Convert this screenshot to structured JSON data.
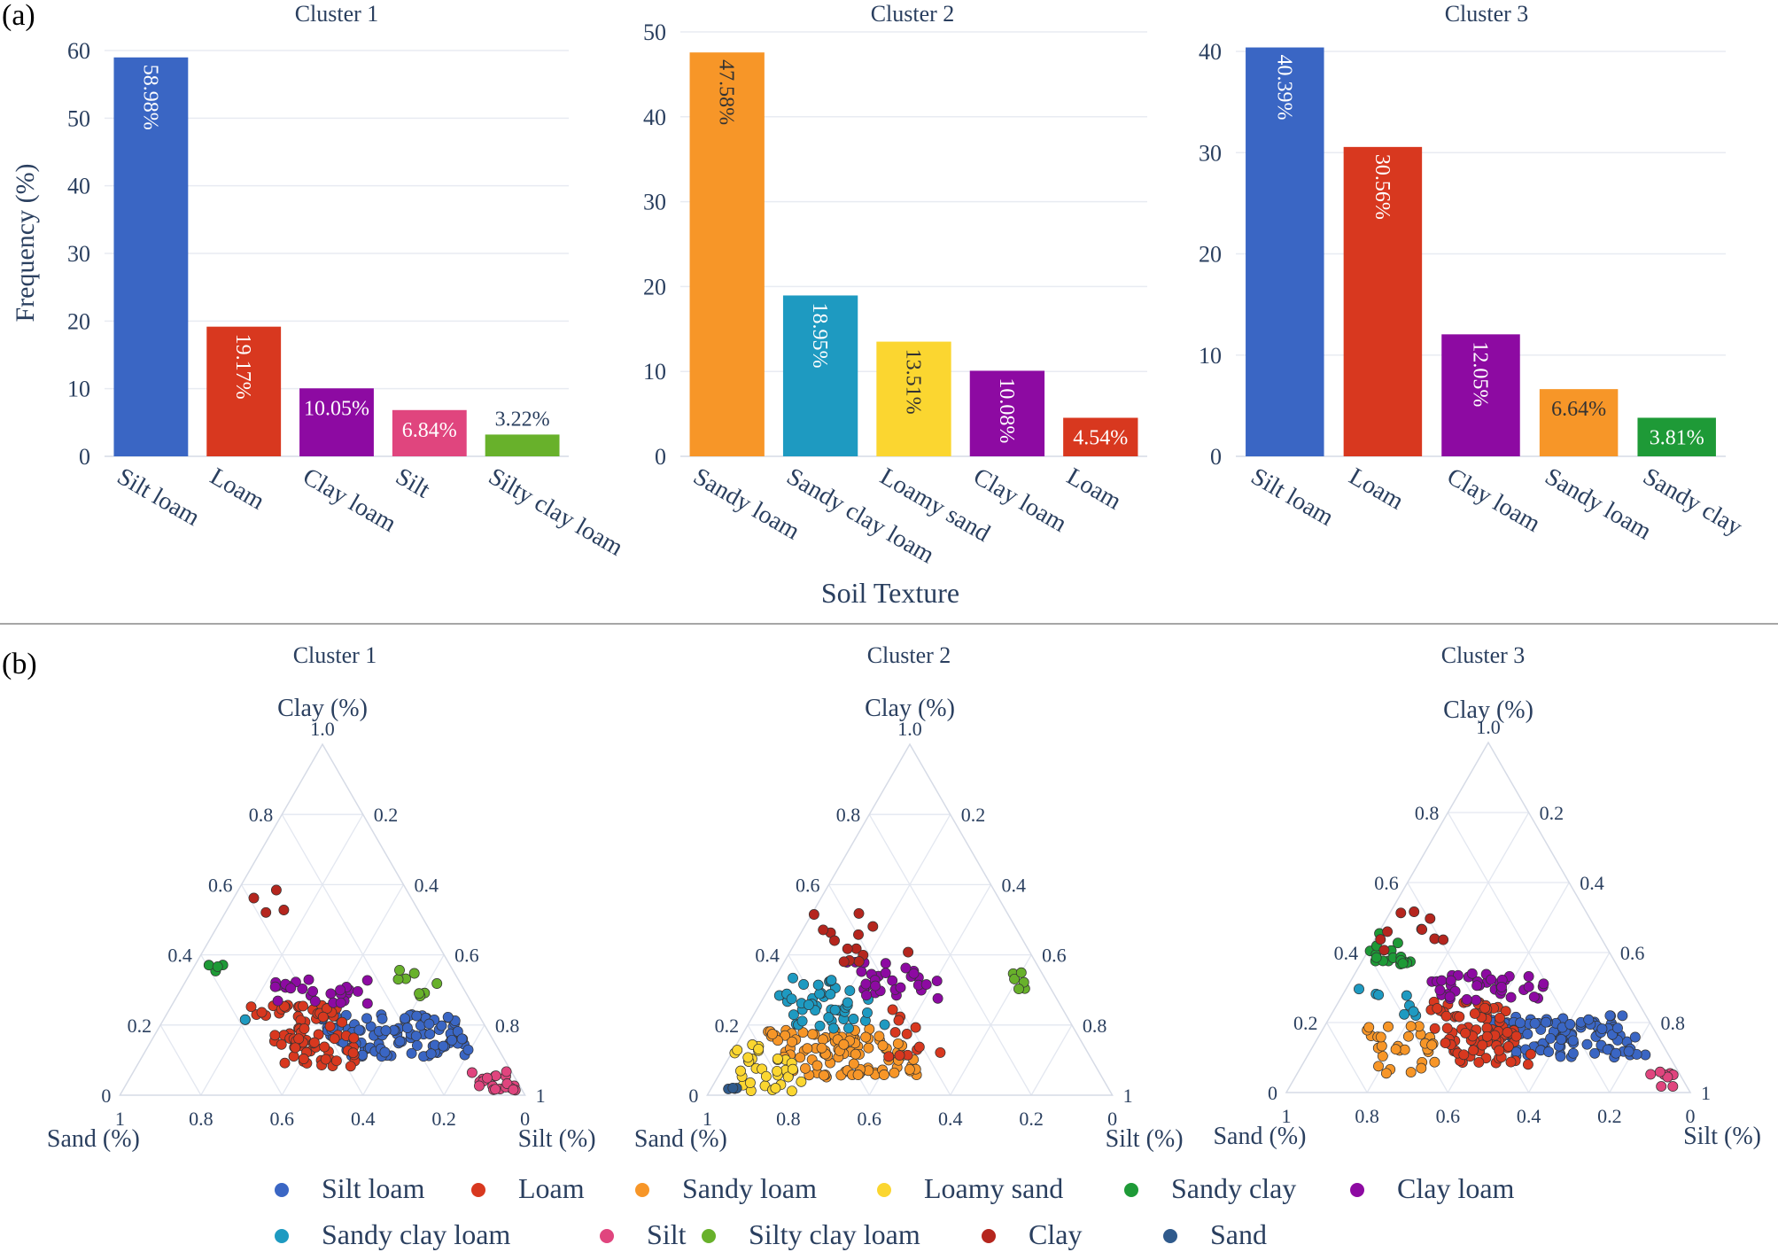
{
  "panel_a_label": "(a)",
  "panel_b_label": "(b)",
  "colors": {
    "Silt loam": "#3a66c4",
    "Loam": "#d8381f",
    "Sandy loam": "#f79628",
    "Loamy sand": "#fbd630",
    "Sandy clay": "#1e9a37",
    "Clay loam": "#8d0aa2",
    "Sandy clay loam": "#1e9ac1",
    "Silt": "#e0457e",
    "Silty clay loam": "#68b12b",
    "Clay": "#b5261e",
    "Sand": "#2f5a8c"
  },
  "legend_items": [
    "Silt loam",
    "Loam",
    "Sandy loam",
    "Loamy sand",
    "Sandy clay",
    "Clay loam",
    "Sandy clay loam",
    "Silt",
    "Silty clay loam",
    "Clay",
    "Sand"
  ],
  "chart_data": [
    {
      "type": "bar",
      "title": "Cluster 1",
      "xlabel": "Soil Texture",
      "ylabel": "Frequency (%)",
      "ylim": [
        0,
        60
      ],
      "yticks": [
        0,
        10,
        20,
        30,
        40,
        50,
        60
      ],
      "categories": [
        "Silt loam",
        "Loam",
        "Clay loam",
        "Silt",
        "Silty clay loam"
      ],
      "values": [
        58.98,
        19.17,
        10.05,
        6.84,
        3.22
      ],
      "labels": [
        "58.98%",
        "19.17%",
        "10.05%",
        "6.84%",
        "3.22%"
      ]
    },
    {
      "type": "bar",
      "title": "Cluster 2",
      "xlabel": "Soil Texture",
      "ylabel": "Frequency (%)",
      "ylim": [
        0,
        50
      ],
      "yticks": [
        0,
        10,
        20,
        30,
        40,
        50
      ],
      "categories": [
        "Sandy loam",
        "Sandy clay loam",
        "Loamy sand",
        "Clay loam",
        "Loam"
      ],
      "values": [
        47.58,
        18.95,
        13.51,
        10.08,
        4.54
      ],
      "labels": [
        "47.58%",
        "18.95%",
        "13.51%",
        "10.08%",
        "4.54%"
      ]
    },
    {
      "type": "bar",
      "title": "Cluster 3",
      "xlabel": "Soil Texture",
      "ylabel": "Frequency (%)",
      "ylim": [
        0,
        40
      ],
      "yticks": [
        0,
        10,
        20,
        30,
        40
      ],
      "categories": [
        "Silt loam",
        "Loam",
        "Clay loam",
        "Sandy loam",
        "Sandy clay"
      ],
      "values": [
        40.39,
        30.56,
        12.05,
        6.64,
        3.81
      ],
      "labels": [
        "40.39%",
        "30.56%",
        "12.05%",
        "6.64%",
        "3.81%"
      ]
    },
    {
      "type": "scatter",
      "subtype": "ternary",
      "title": "Cluster 1",
      "axes": {
        "a": "Clay (%)",
        "b": "Sand (%)",
        "c": "Silt (%)"
      },
      "ticks": [
        "0",
        "0.2",
        "0.4",
        "0.6",
        "0.8",
        "1"
      ],
      "apex_label": "1.0",
      "clusters": [
        {
          "class": "Silt loam",
          "clay": [
            0.11,
            0.23
          ],
          "sand": [
            0.05,
            0.4
          ],
          "n": 110
        },
        {
          "class": "Loam",
          "clay": [
            0.08,
            0.26
          ],
          "sand": [
            0.34,
            0.55
          ],
          "n": 80
        },
        {
          "class": "Clay loam",
          "clay": [
            0.26,
            0.33
          ],
          "sand": [
            0.22,
            0.48
          ],
          "n": 26
        },
        {
          "class": "Silt",
          "clay": [
            0.01,
            0.07
          ],
          "sand": [
            0.01,
            0.1
          ],
          "n": 20
        },
        {
          "class": "Silty clay loam",
          "clay": [
            0.28,
            0.36
          ],
          "sand": [
            0.05,
            0.18
          ],
          "n": 8
        },
        {
          "class": "Sandy clay",
          "clay": [
            0.35,
            0.38
          ],
          "sand": [
            0.56,
            0.6
          ],
          "n": 4
        },
        {
          "class": "Clay",
          "clay": [
            0.41,
            0.62
          ],
          "sand": [
            0.32,
            0.58
          ],
          "n": 4
        },
        {
          "class": "Sandy clay loam",
          "clay": [
            0.19,
            0.22
          ],
          "sand": [
            0.58,
            0.62
          ],
          "n": 2
        }
      ]
    },
    {
      "type": "scatter",
      "subtype": "ternary",
      "title": "Cluster 2",
      "axes": {
        "a": "Clay (%)",
        "b": "Sand (%)",
        "c": "Silt (%)"
      },
      "ticks": [
        "0",
        "0.2",
        "0.4",
        "0.6",
        "0.8",
        "1"
      ],
      "apex_label": "1.0",
      "clusters": [
        {
          "class": "Sandy loam",
          "clay": [
            0.05,
            0.19
          ],
          "sand": [
            0.44,
            0.76
          ],
          "n": 100
        },
        {
          "class": "Sandy clay loam",
          "clay": [
            0.19,
            0.34
          ],
          "sand": [
            0.46,
            0.68
          ],
          "n": 45
        },
        {
          "class": "Loamy sand",
          "clay": [
            0.01,
            0.15
          ],
          "sand": [
            0.74,
            0.9
          ],
          "n": 35
        },
        {
          "class": "Clay loam",
          "clay": [
            0.27,
            0.38
          ],
          "sand": [
            0.26,
            0.48
          ],
          "n": 30
        },
        {
          "class": "Loam",
          "clay": [
            0.1,
            0.26
          ],
          "sand": [
            0.36,
            0.5
          ],
          "n": 12
        },
        {
          "class": "Clay",
          "clay": [
            0.38,
            0.52
          ],
          "sand": [
            0.3,
            0.48
          ],
          "n": 14
        },
        {
          "class": "Silty clay loam",
          "clay": [
            0.3,
            0.36
          ],
          "sand": [
            0.02,
            0.08
          ],
          "n": 6
        },
        {
          "class": "Sand",
          "clay": [
            0.01,
            0.03
          ],
          "sand": [
            0.9,
            0.94
          ],
          "n": 4
        }
      ]
    },
    {
      "type": "scatter",
      "subtype": "ternary",
      "title": "Cluster 3",
      "axes": {
        "a": "Clay (%)",
        "b": "Sand (%)",
        "c": "Silt (%)"
      },
      "ticks": [
        "0",
        "0.2",
        "0.4",
        "0.6",
        "0.8",
        "1"
      ],
      "apex_label": "1.0",
      "clusters": [
        {
          "class": "Silt loam",
          "clay": [
            0.1,
            0.22
          ],
          "sand": [
            0.05,
            0.4
          ],
          "n": 110
        },
        {
          "class": "Loam",
          "clay": [
            0.08,
            0.26
          ],
          "sand": [
            0.34,
            0.55
          ],
          "n": 90
        },
        {
          "class": "Clay loam",
          "clay": [
            0.26,
            0.34
          ],
          "sand": [
            0.2,
            0.5
          ],
          "n": 40
        },
        {
          "class": "Sandy loam",
          "clay": [
            0.05,
            0.19
          ],
          "sand": [
            0.56,
            0.74
          ],
          "n": 30
        },
        {
          "class": "Sandy clay",
          "clay": [
            0.36,
            0.52
          ],
          "sand": [
            0.5,
            0.64
          ],
          "n": 18
        },
        {
          "class": "Clay",
          "clay": [
            0.4,
            0.52
          ],
          "sand": [
            0.34,
            0.56
          ],
          "n": 10
        },
        {
          "class": "Sandy clay loam",
          "clay": [
            0.2,
            0.3
          ],
          "sand": [
            0.56,
            0.68
          ],
          "n": 8
        },
        {
          "class": "Silt",
          "clay": [
            0.01,
            0.07
          ],
          "sand": [
            0.01,
            0.08
          ],
          "n": 8
        }
      ]
    }
  ]
}
